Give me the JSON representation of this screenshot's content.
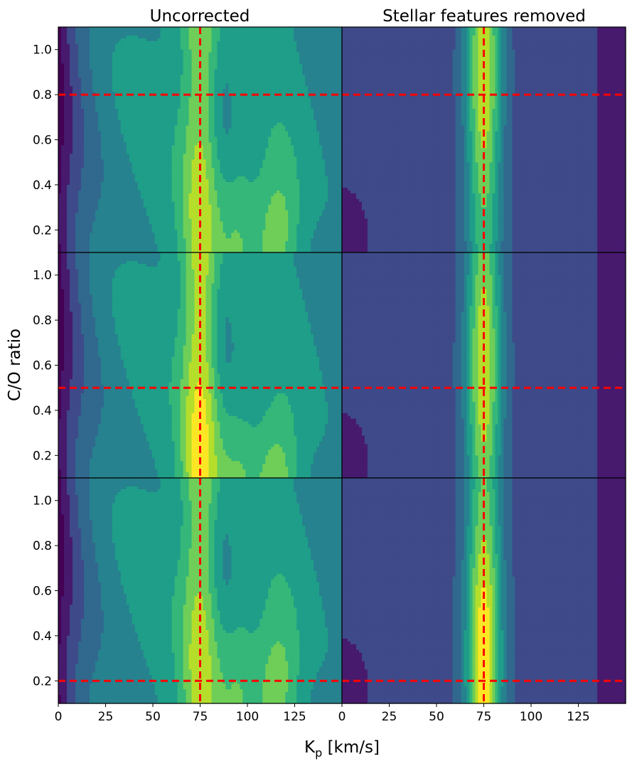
{
  "chart_data": {
    "type": "heatmap",
    "subtype": "filled-contour-grid",
    "column_titles": [
      "Uncorrected",
      "Stellar features removed"
    ],
    "xlabel_main": "K",
    "xlabel_sub": "p",
    "xlabel_units": " [km/s]",
    "ylabel": "C/O ratio",
    "xlim": [
      0,
      150
    ],
    "ylim": [
      0.1,
      1.1
    ],
    "xticks": [
      0,
      25,
      50,
      75,
      100,
      125
    ],
    "xtick_labels": [
      "0",
      "25",
      "50",
      "75",
      "100",
      "125"
    ],
    "yticks": [
      0.2,
      0.4,
      0.6,
      0.8,
      1.0
    ],
    "ytick_labels": [
      "0.2",
      "0.4",
      "0.6",
      "0.8",
      "1.0"
    ],
    "colormap": "viridis",
    "colormap_levels": [
      "#440154",
      "#471a6e",
      "#3e4a89",
      "#31688e",
      "#26828e",
      "#1f9e89",
      "#35b779",
      "#6ece58",
      "#b5de2b",
      "#fde725"
    ],
    "marker_color": "#ff0000",
    "marker_style": "dashed",
    "grid": false,
    "legend": "none",
    "rows": [
      {
        "true_kp": 75,
        "true_co": 0.8,
        "panels": [
          {
            "column": "Uncorrected",
            "peak_kp": 75,
            "peak_co": 0.2,
            "peak_level": 8,
            "secondary_peak_kp": 116,
            "secondary_peak_co": 0.2,
            "background_level": 5,
            "edge_low_level": 0,
            "edge_high_level": 4
          },
          {
            "column": "Stellar features removed",
            "peak_kp": 75,
            "peak_co": 0.9,
            "peak_level": 8,
            "background_level": 2,
            "edge_low_level": 1,
            "edge_high_level": 1
          }
        ]
      },
      {
        "true_kp": 75,
        "true_co": 0.5,
        "panels": [
          {
            "column": "Uncorrected",
            "peak_kp": 75,
            "peak_co": 0.1,
            "peak_level": 9,
            "secondary_peak_kp": 116,
            "secondary_peak_co": 0.1,
            "background_level": 5,
            "edge_low_level": 0,
            "edge_high_level": 4
          },
          {
            "column": "Stellar features removed",
            "peak_kp": 75,
            "peak_co": 0.6,
            "peak_level": 8,
            "background_level": 2,
            "edge_low_level": 1,
            "edge_high_level": 1
          }
        ]
      },
      {
        "true_kp": 75,
        "true_co": 0.2,
        "panels": [
          {
            "column": "Uncorrected",
            "peak_kp": 75,
            "peak_co": 0.2,
            "peak_level": 8,
            "secondary_peak_kp": 116,
            "secondary_peak_co": 0.2,
            "background_level": 5,
            "edge_low_level": 0,
            "edge_high_level": 4
          },
          {
            "column": "Stellar features removed",
            "peak_kp": 75,
            "peak_co": 0.3,
            "peak_level": 9,
            "background_level": 2,
            "edge_low_level": 1,
            "edge_high_level": 1
          }
        ]
      }
    ]
  }
}
